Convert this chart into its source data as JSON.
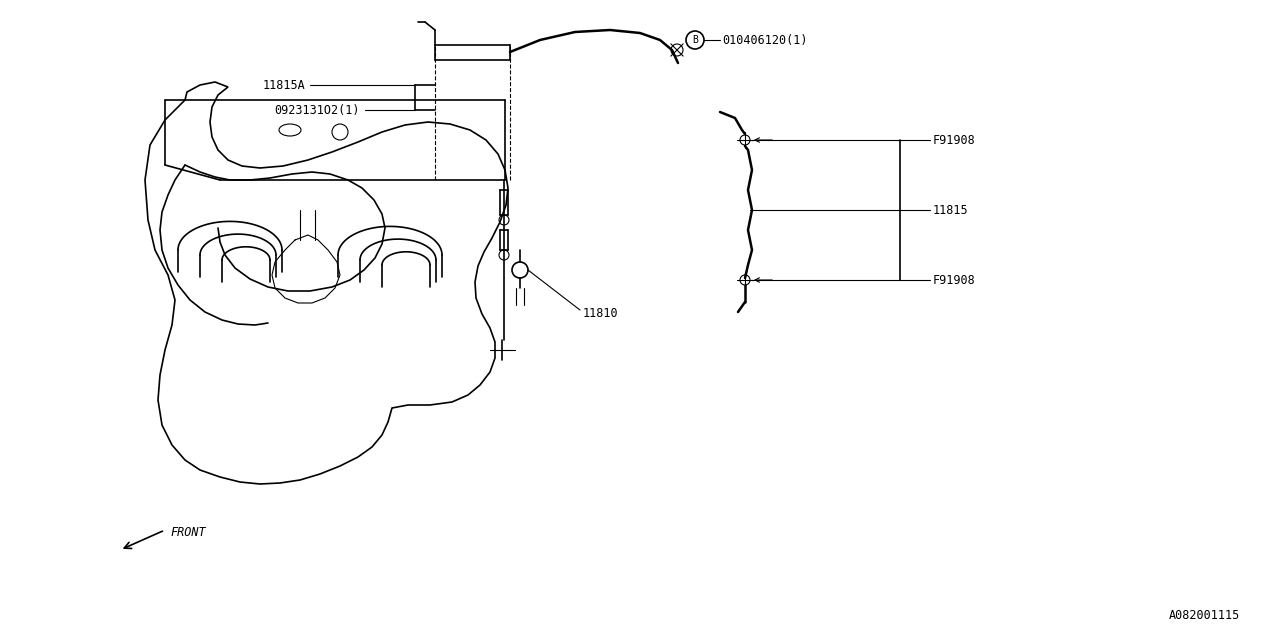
{
  "bg_color": "#ffffff",
  "line_color": "#000000",
  "labels": {
    "B_part": "010406120(1)",
    "F91908_top": "F91908",
    "F91908_bottom": "F91908",
    "part_11815": "11815",
    "part_11815A": "11815A",
    "part_09231": "0923131O2(1)",
    "part_11810": "11810",
    "FRONT": "FRONT",
    "diagram_id": "A082001115"
  },
  "fig_width": 12.8,
  "fig_height": 6.4,
  "dpi": 100
}
